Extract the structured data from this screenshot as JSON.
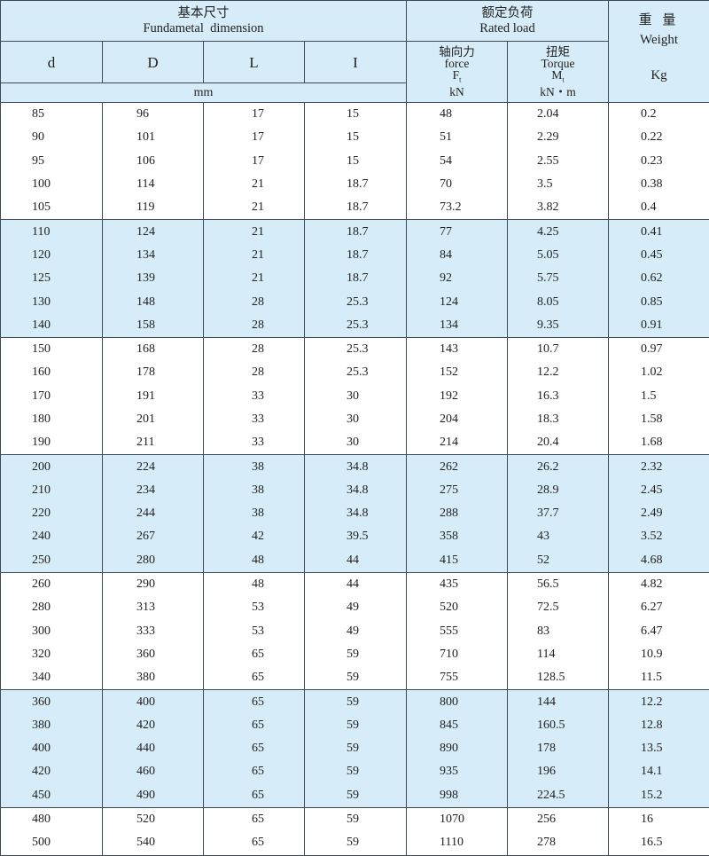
{
  "header": {
    "basic_cn": "基本尺寸",
    "basic_en": "Fundametal  dimension",
    "rated_cn": "额定负荷",
    "rated_en": "Rated load",
    "weight_cn": "重 量",
    "weight_en": "Weight",
    "weight_unit": "Kg",
    "cols": [
      "d",
      "D",
      "L",
      "I"
    ],
    "mm": "mm",
    "force_cn": "轴向力",
    "force_en": "force",
    "force_sym": "F",
    "force_sub": "t",
    "force_unit": "kN",
    "torque_cn": "扭矩",
    "torque_en": "Torque",
    "torque_sym": "M",
    "torque_sub": "t",
    "torque_unit": "kN・m"
  },
  "row_colors": {
    "odd_group": "#ffffff",
    "even_group": "#d6ecf8"
  },
  "rows": [
    [
      "85",
      "96",
      "17",
      "15",
      "48",
      "2.04",
      "0.2"
    ],
    [
      "90",
      "101",
      "17",
      "15",
      "51",
      "2.29",
      "0.22"
    ],
    [
      "95",
      "106",
      "17",
      "15",
      "54",
      "2.55",
      "0.23"
    ],
    [
      "100",
      "114",
      "21",
      "18.7",
      "70",
      "3.5",
      "0.38"
    ],
    [
      "105",
      "119",
      "21",
      "18.7",
      "73.2",
      "3.82",
      "0.4"
    ],
    [
      "110",
      "124",
      "21",
      "18.7",
      "77",
      "4.25",
      "0.41"
    ],
    [
      "120",
      "134",
      "21",
      "18.7",
      "84",
      "5.05",
      "0.45"
    ],
    [
      "125",
      "139",
      "21",
      "18.7",
      "92",
      "5.75",
      "0.62"
    ],
    [
      "130",
      "148",
      "28",
      "25.3",
      "124",
      "8.05",
      "0.85"
    ],
    [
      "140",
      "158",
      "28",
      "25.3",
      "134",
      "9.35",
      "0.91"
    ],
    [
      "150",
      "168",
      "28",
      "25.3",
      "143",
      "10.7",
      "0.97"
    ],
    [
      "160",
      "178",
      "28",
      "25.3",
      "152",
      "12.2",
      "1.02"
    ],
    [
      "170",
      "191",
      "33",
      "30",
      "192",
      "16.3",
      "1.5"
    ],
    [
      "180",
      "201",
      "33",
      "30",
      "204",
      "18.3",
      "1.58"
    ],
    [
      "190",
      "211",
      "33",
      "30",
      "214",
      "20.4",
      "1.68"
    ],
    [
      "200",
      "224",
      "38",
      "34.8",
      "262",
      "26.2",
      "2.32"
    ],
    [
      "210",
      "234",
      "38",
      "34.8",
      "275",
      "28.9",
      "2.45"
    ],
    [
      "220",
      "244",
      "38",
      "34.8",
      "288",
      "37.7",
      "2.49"
    ],
    [
      "240",
      "267",
      "42",
      "39.5",
      "358",
      "43",
      "3.52"
    ],
    [
      "250",
      "280",
      "48",
      "44",
      "415",
      "52",
      "4.68"
    ],
    [
      "260",
      "290",
      "48",
      "44",
      "435",
      "56.5",
      "4.82"
    ],
    [
      "280",
      "313",
      "53",
      "49",
      "520",
      "72.5",
      "6.27"
    ],
    [
      "300",
      "333",
      "53",
      "49",
      "555",
      "83",
      "6.47"
    ],
    [
      "320",
      "360",
      "65",
      "59",
      "710",
      "114",
      "10.9"
    ],
    [
      "340",
      "380",
      "65",
      "59",
      "755",
      "128.5",
      "11.5"
    ],
    [
      "360",
      "400",
      "65",
      "59",
      "800",
      "144",
      "12.2"
    ],
    [
      "380",
      "420",
      "65",
      "59",
      "845",
      "160.5",
      "12.8"
    ],
    [
      "400",
      "440",
      "65",
      "59",
      "890",
      "178",
      "13.5"
    ],
    [
      "420",
      "460",
      "65",
      "59",
      "935",
      "196",
      "14.1"
    ],
    [
      "450",
      "490",
      "65",
      "59",
      "998",
      "224.5",
      "15.2"
    ],
    [
      "480",
      "520",
      "65",
      "59",
      "1070",
      "256",
      "16"
    ],
    [
      "500",
      "540",
      "65",
      "59",
      "1110",
      "278",
      "16.5"
    ]
  ]
}
